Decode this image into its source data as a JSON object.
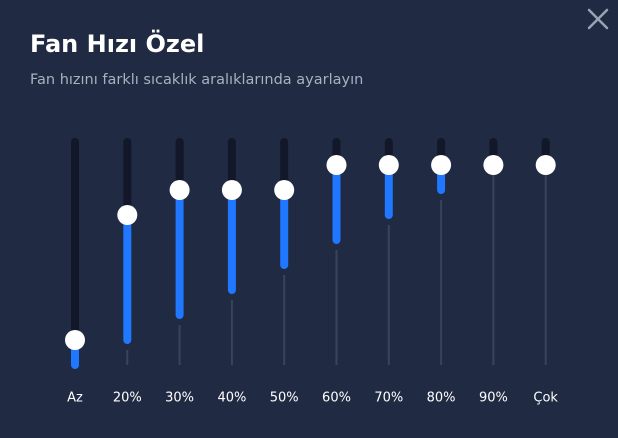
{
  "header": {
    "title": "Fan Hızı Özel",
    "subtitle": "Fan hızını farklı sıcaklık aralıklarında ayarlayın"
  },
  "range": [
    0,
    9
  ],
  "sliders": [
    {
      "label": "Az",
      "value": 1,
      "min": 0
    },
    {
      "label": "20%",
      "value": 6,
      "min": 1
    },
    {
      "label": "30%",
      "value": 7,
      "min": 2
    },
    {
      "label": "40%",
      "value": 7,
      "min": 3
    },
    {
      "label": "50%",
      "value": 7,
      "min": 4
    },
    {
      "label": "60%",
      "value": 8,
      "min": 5
    },
    {
      "label": "70%",
      "value": 8,
      "min": 6
    },
    {
      "label": "80%",
      "value": 8,
      "min": 7
    },
    {
      "label": "90%",
      "value": 8,
      "min": 8
    },
    {
      "label": "Çok",
      "value": 8,
      "min": 8
    }
  ]
}
